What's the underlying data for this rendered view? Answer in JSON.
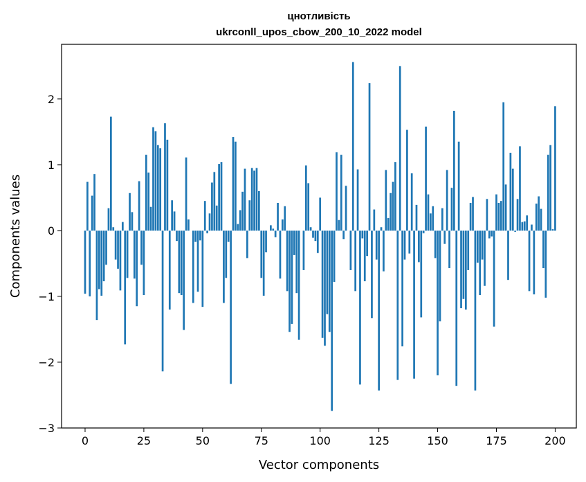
{
  "chart_data": {
    "type": "bar",
    "title_line1": "цнотливість",
    "title_line2": "ukrconll_upos_cbow_200_10_2022 model",
    "xlabel": "Vector components",
    "ylabel": "Components values",
    "xlim": [
      -10,
      209
    ],
    "ylim": [
      -3,
      2.83
    ],
    "xticks": [
      0,
      25,
      50,
      75,
      100,
      125,
      150,
      175,
      200
    ],
    "yticks": [
      -3,
      -2,
      -1,
      0,
      1,
      2
    ],
    "ytick_labels": [
      "−3",
      "−2",
      "−1",
      "0",
      "1",
      "2"
    ],
    "bar_color": "#1f77b4",
    "grid": false,
    "values": [
      -0.96,
      0.74,
      -1.0,
      0.53,
      0.86,
      -1.36,
      -0.89,
      -0.99,
      -0.77,
      -0.52,
      0.34,
      1.73,
      0.05,
      -0.44,
      -0.58,
      -0.91,
      0.13,
      -1.73,
      -0.72,
      0.57,
      0.28,
      -0.73,
      -1.15,
      0.75,
      -0.52,
      -0.98,
      1.15,
      0.88,
      0.36,
      1.57,
      1.51,
      1.3,
      1.25,
      -2.14,
      1.63,
      1.38,
      -1.2,
      0.46,
      0.29,
      -0.16,
      -0.95,
      -0.98,
      -1.51,
      1.11,
      0.17,
      0.0,
      -1.1,
      -0.17,
      -0.93,
      -0.15,
      -1.16,
      0.45,
      -0.04,
      0.26,
      0.73,
      0.89,
      0.38,
      1.01,
      1.04,
      -1.1,
      -0.72,
      -0.17,
      -2.33,
      1.42,
      1.35,
      0.1,
      0.31,
      0.59,
      0.94,
      -0.42,
      0.46,
      0.95,
      0.91,
      0.95,
      0.6,
      -0.72,
      -0.99,
      -0.33,
      0.0,
      0.08,
      0.03,
      -0.1,
      0.42,
      -0.73,
      0.17,
      0.37,
      -0.92,
      -1.54,
      -1.42,
      -0.37,
      -0.95,
      -1.66,
      0.0,
      -0.6,
      0.99,
      0.72,
      0.05,
      -0.11,
      -0.16,
      -0.34,
      0.5,
      -1.63,
      -1.75,
      -1.27,
      -1.54,
      -2.74,
      -0.78,
      1.19,
      0.16,
      1.15,
      -0.13,
      0.68,
      0.0,
      -0.6,
      2.56,
      -0.92,
      0.93,
      -2.34,
      -0.12,
      -0.77,
      -0.39,
      2.24,
      -1.33,
      0.32,
      -0.44,
      -2.43,
      0.05,
      -0.62,
      0.92,
      0.19,
      0.57,
      0.74,
      1.04,
      -2.27,
      2.5,
      -1.76,
      -0.44,
      1.53,
      -0.35,
      0.87,
      -2.25,
      0.39,
      -0.48,
      -1.32,
      -0.04,
      1.58,
      0.55,
      0.26,
      0.37,
      -0.42,
      -2.2,
      -1.38,
      0.34,
      -0.2,
      0.92,
      -0.57,
      0.65,
      1.82,
      -2.36,
      1.35,
      -1.18,
      -1.04,
      -1.2,
      -0.6,
      0.42,
      0.51,
      -2.43,
      -0.49,
      -0.98,
      -0.44,
      -0.84,
      0.48,
      -0.12,
      -0.09,
      -1.46,
      0.55,
      0.42,
      0.45,
      1.95,
      0.7,
      -0.75,
      1.18,
      0.94,
      -0.02,
      0.48,
      1.28,
      0.13,
      0.14,
      0.23,
      -0.92,
      0.09,
      -0.97,
      0.41,
      0.52,
      0.33,
      -0.57,
      -1.02,
      1.15,
      1.3,
      0.02,
      1.89
    ]
  }
}
